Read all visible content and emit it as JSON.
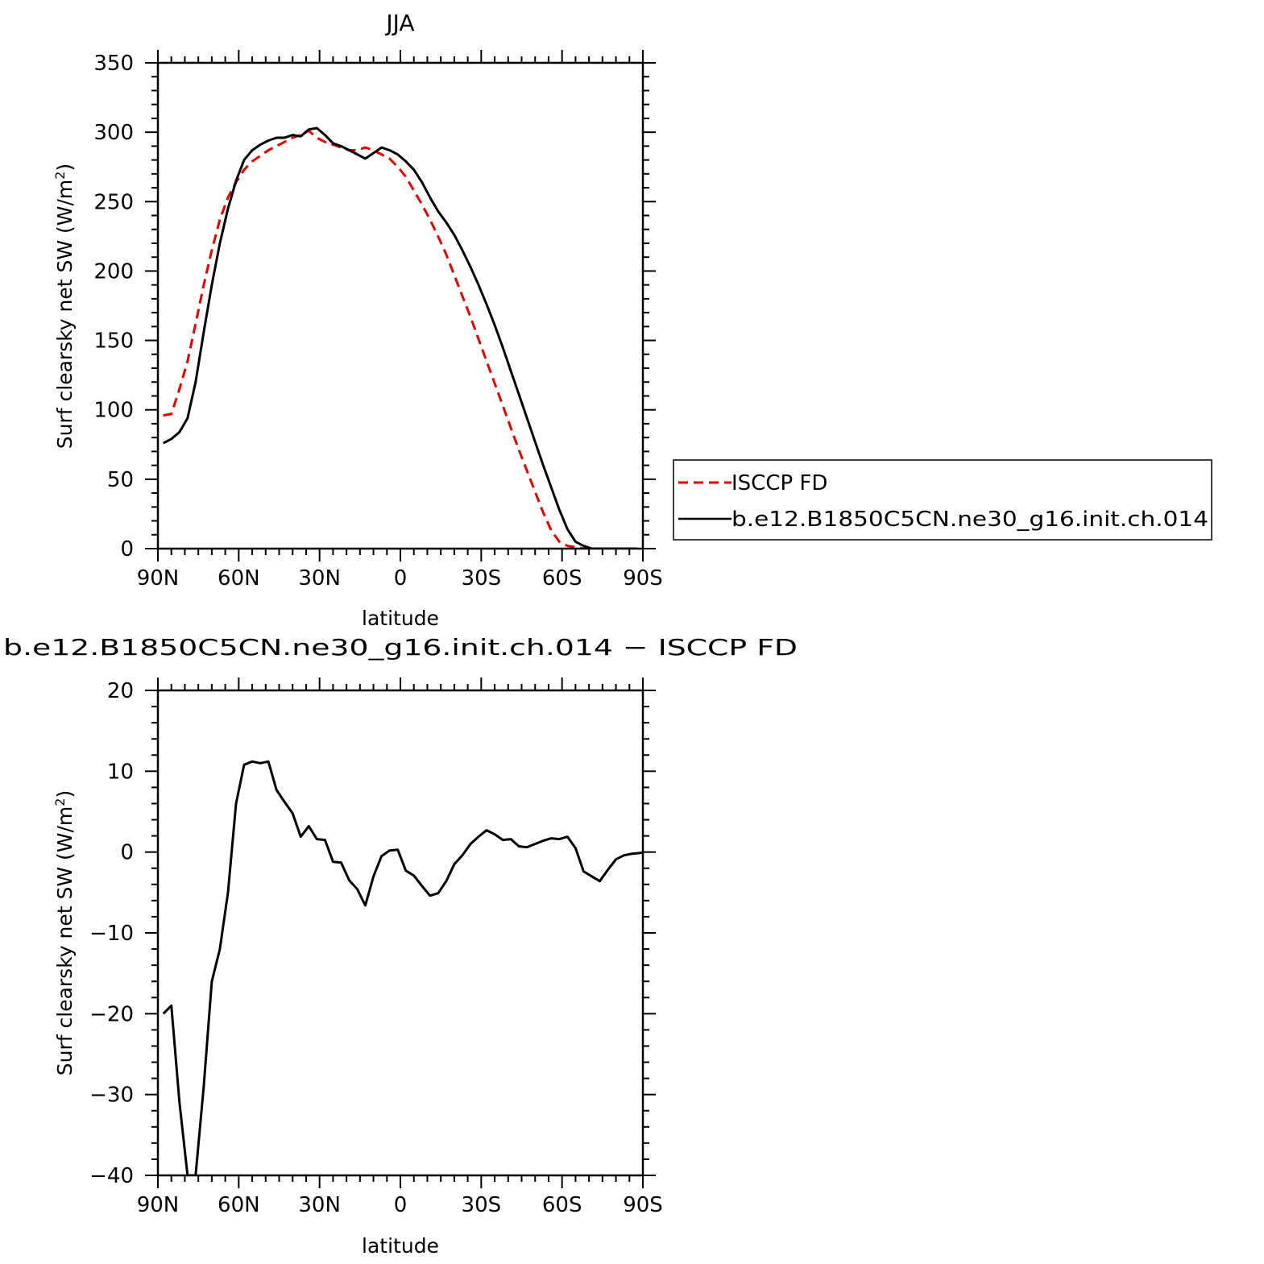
{
  "chart_data": [
    {
      "type": "line",
      "title": "JJA",
      "xlabel": "latitude",
      "ylabel": "Surf clearsky net SW (W/m",
      "ylabel_sup": "2",
      "ylabel_close": ")",
      "xlim": [
        90,
        -90
      ],
      "ylim": [
        0,
        350
      ],
      "x_ticks": [
        {
          "v": 90,
          "label": "90N"
        },
        {
          "v": 60,
          "label": "60N"
        },
        {
          "v": 30,
          "label": "30N"
        },
        {
          "v": 0,
          "label": "0"
        },
        {
          "v": -30,
          "label": "30S"
        },
        {
          "v": -60,
          "label": "60S"
        },
        {
          "v": -90,
          "label": "90S"
        }
      ],
      "y_ticks": [
        {
          "v": 0,
          "label": "0"
        },
        {
          "v": 50,
          "label": "50"
        },
        {
          "v": 100,
          "label": "100"
        },
        {
          "v": 150,
          "label": "150"
        },
        {
          "v": 200,
          "label": "200"
        },
        {
          "v": 250,
          "label": "250"
        },
        {
          "v": 300,
          "label": "300"
        },
        {
          "v": 350,
          "label": "350"
        }
      ],
      "legend": "right",
      "series": [
        {
          "name": "ISCCP FD",
          "color": "#e00000",
          "dash": "dashed",
          "points": [
            [
              88,
              96
            ],
            [
              85,
              97
            ],
            [
              82,
              115
            ],
            [
              79,
              135
            ],
            [
              76,
              162
            ],
            [
              73,
              190
            ],
            [
              70,
              215
            ],
            [
              67,
              237
            ],
            [
              64,
              253
            ],
            [
              61,
              264
            ],
            [
              58,
              273
            ],
            [
              55,
              279
            ],
            [
              52,
              283
            ],
            [
              49,
              287
            ],
            [
              46,
              290
            ],
            [
              43,
              293
            ],
            [
              40,
              296
            ],
            [
              37,
              298
            ],
            [
              34,
              301
            ],
            [
              31,
              296
            ],
            [
              28,
              293
            ],
            [
              25,
              291
            ],
            [
              22,
              289
            ],
            [
              19,
              287
            ],
            [
              16,
              287
            ],
            [
              13,
              289
            ],
            [
              10,
              287
            ],
            [
              7,
              284
            ],
            [
              4,
              281
            ],
            [
              1,
              275
            ],
            [
              -2,
              268
            ],
            [
              -5,
              258
            ],
            [
              -8,
              248
            ],
            [
              -11,
              237
            ],
            [
              -14,
              225
            ],
            [
              -17,
              212
            ],
            [
              -20,
              197
            ],
            [
              -23,
              182
            ],
            [
              -26,
              167
            ],
            [
              -29,
              151
            ],
            [
              -32,
              135
            ],
            [
              -35,
              119
            ],
            [
              -38,
              103
            ],
            [
              -41,
              87
            ],
            [
              -44,
              71
            ],
            [
              -47,
              56
            ],
            [
              -50,
              41
            ],
            [
              -53,
              26
            ],
            [
              -56,
              13
            ],
            [
              -59,
              5
            ],
            [
              -62,
              2
            ],
            [
              -65,
              1
            ],
            [
              -68,
              0
            ],
            [
              -71,
              0
            ],
            [
              -74,
              0
            ],
            [
              -77,
              0
            ],
            [
              -80,
              0
            ],
            [
              -83,
              0
            ],
            [
              -86,
              0
            ],
            [
              -88,
              0
            ]
          ]
        },
        {
          "name": "b.e12.B1850C5CN.ne30_g16.init.ch.014",
          "color": "#000000",
          "dash": "solid",
          "points": [
            [
              88,
              76
            ],
            [
              85,
              79
            ],
            [
              82,
              84
            ],
            [
              79,
              94
            ],
            [
              76,
              120
            ],
            [
              73,
              156
            ],
            [
              70,
              190
            ],
            [
              67,
              220
            ],
            [
              64,
              245
            ],
            [
              61,
              265
            ],
            [
              58,
              280
            ],
            [
              55,
              287
            ],
            [
              52,
              291
            ],
            [
              49,
              294
            ],
            [
              46,
              296
            ],
            [
              43,
              296
            ],
            [
              40,
              298
            ],
            [
              37,
              297
            ],
            [
              34,
              302
            ],
            [
              31,
              303
            ],
            [
              28,
              298
            ],
            [
              25,
              292
            ],
            [
              22,
              290
            ],
            [
              19,
              287
            ],
            [
              16,
              284
            ],
            [
              13,
              281
            ],
            [
              10,
              285
            ],
            [
              7,
              289
            ],
            [
              4,
              287
            ],
            [
              1,
              284
            ],
            [
              -2,
              279
            ],
            [
              -5,
              273
            ],
            [
              -8,
              264
            ],
            [
              -11,
              253
            ],
            [
              -14,
              243
            ],
            [
              -17,
              235
            ],
            [
              -20,
              226
            ],
            [
              -23,
              215
            ],
            [
              -26,
              203
            ],
            [
              -29,
              190
            ],
            [
              -32,
              176
            ],
            [
              -35,
              161
            ],
            [
              -38,
              145
            ],
            [
              -41,
              128
            ],
            [
              -44,
              111
            ],
            [
              -47,
              94
            ],
            [
              -50,
              77
            ],
            [
              -53,
              60
            ],
            [
              -56,
              44
            ],
            [
              -59,
              28
            ],
            [
              -62,
              14
            ],
            [
              -65,
              5
            ],
            [
              -68,
              2
            ],
            [
              -71,
              0
            ],
            [
              -74,
              0
            ],
            [
              -77,
              0
            ],
            [
              -80,
              0
            ],
            [
              -83,
              0
            ],
            [
              -86,
              0
            ],
            [
              -88,
              0
            ]
          ]
        }
      ]
    },
    {
      "type": "line",
      "title": "b.e12.B1850C5CN.ne30_g16.init.ch.014 − ISCCP FD",
      "xlabel": "latitude",
      "ylabel": "Surf clearsky net SW (W/m",
      "ylabel_sup": "2",
      "ylabel_close": ")",
      "xlim": [
        90,
        -90
      ],
      "ylim": [
        -40,
        20
      ],
      "x_ticks": [
        {
          "v": 90,
          "label": "90N"
        },
        {
          "v": 60,
          "label": "60N"
        },
        {
          "v": 30,
          "label": "30N"
        },
        {
          "v": 0,
          "label": "0"
        },
        {
          "v": -30,
          "label": "30S"
        },
        {
          "v": -60,
          "label": "60S"
        },
        {
          "v": -90,
          "label": "90S"
        }
      ],
      "y_ticks": [
        {
          "v": -40,
          "label": "−40"
        },
        {
          "v": -30,
          "label": "−30"
        },
        {
          "v": -20,
          "label": "−20"
        },
        {
          "v": -10,
          "label": "−10"
        },
        {
          "v": 0,
          "label": "0"
        },
        {
          "v": 10,
          "label": "10"
        },
        {
          "v": 20,
          "label": "20"
        }
      ],
      "series": [
        {
          "color": "#000000",
          "dash": "solid",
          "points": [
            [
              88,
              -20
            ],
            [
              85,
              -19
            ],
            [
              82,
              -31
            ],
            [
              79,
              -40
            ],
            [
              76,
              -40
            ],
            [
              73,
              -29
            ],
            [
              70,
              -16
            ],
            [
              67,
              -12
            ],
            [
              64,
              -5
            ],
            [
              61,
              6
            ],
            [
              58,
              10.8
            ],
            [
              55,
              11.2
            ],
            [
              52,
              11
            ],
            [
              49,
              11.2
            ],
            [
              46,
              7.7
            ],
            [
              43,
              6.2
            ],
            [
              40,
              4.8
            ],
            [
              37,
              1.9
            ],
            [
              34,
              3.2
            ],
            [
              31,
              1.6
            ],
            [
              28,
              1.5
            ],
            [
              25,
              -1.2
            ],
            [
              22,
              -1.3
            ],
            [
              19,
              -3.5
            ],
            [
              16,
              -4.6
            ],
            [
              13,
              -6.6
            ],
            [
              10,
              -3
            ],
            [
              7,
              -0.5
            ],
            [
              4,
              0.2
            ],
            [
              1,
              0.3
            ],
            [
              -2,
              -2.3
            ],
            [
              -5,
              -2.9
            ],
            [
              -8,
              -4.2
            ],
            [
              -11,
              -5.4
            ],
            [
              -14,
              -5.1
            ],
            [
              -17,
              -3.6
            ],
            [
              -20,
              -1.5
            ],
            [
              -23,
              -0.4
            ],
            [
              -26,
              1
            ],
            [
              -29,
              1.9
            ],
            [
              -32,
              2.7
            ],
            [
              -35,
              2.2
            ],
            [
              -38,
              1.5
            ],
            [
              -41,
              1.6
            ],
            [
              -44,
              0.7
            ],
            [
              -47,
              0.6
            ],
            [
              -50,
              1
            ],
            [
              -53,
              1.4
            ],
            [
              -56,
              1.7
            ],
            [
              -59,
              1.6
            ],
            [
              -62,
              1.9
            ],
            [
              -65,
              0.5
            ],
            [
              -68,
              -2.4
            ],
            [
              -71,
              -3
            ],
            [
              -74,
              -3.6
            ],
            [
              -77,
              -2.2
            ],
            [
              -80,
              -0.9
            ],
            [
              -83,
              -0.4
            ],
            [
              -86,
              -0.2
            ],
            [
              -89,
              -0.1
            ],
            [
              -92,
              0
            ],
            [
              -95,
              0
            ],
            [
              -98,
              0
            ]
          ]
        }
      ]
    }
  ]
}
